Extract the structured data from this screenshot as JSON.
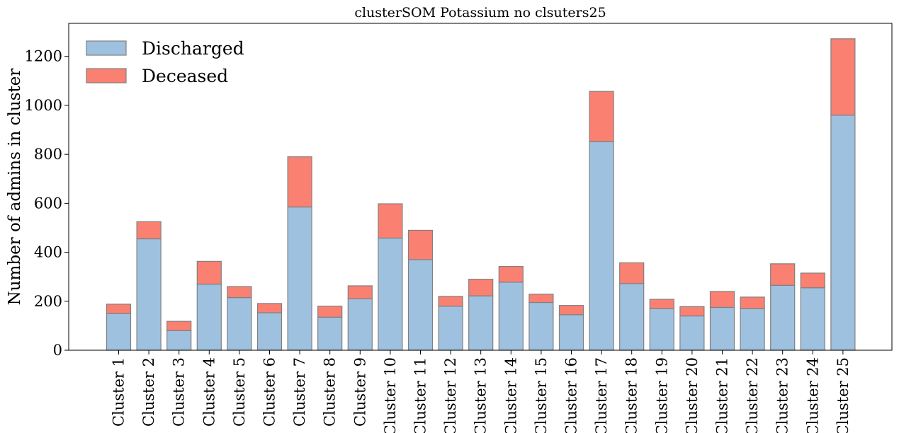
{
  "chart_data": {
    "type": "bar",
    "stacked": true,
    "title": "clusterSOM Potassium no clsuters25",
    "xlabel": "",
    "ylabel": "Number of admins in cluster",
    "ylim": [
      0,
      1335
    ],
    "yticks": [
      0,
      200,
      400,
      600,
      800,
      1000,
      1200
    ],
    "grid": false,
    "legend_position": "upper-left",
    "categories": [
      "Cluster 1",
      "Cluster 2",
      "Cluster 3",
      "Cluster 4",
      "Cluster 5",
      "Cluster 6",
      "Cluster 7",
      "Cluster 8",
      "Cluster 9",
      "Cluster 10",
      "Cluster 11",
      "Cluster 12",
      "Cluster 13",
      "Cluster 14",
      "Cluster 15",
      "Cluster 16",
      "Cluster 17",
      "Cluster 18",
      "Cluster 19",
      "Cluster 20",
      "Cluster 21",
      "Cluster 22",
      "Cluster 23",
      "Cluster 24",
      "Cluster 25"
    ],
    "series": [
      {
        "name": "Discharged",
        "color": "#9fc1e0",
        "values": [
          150,
          455,
          80,
          270,
          215,
          153,
          585,
          135,
          210,
          458,
          370,
          180,
          222,
          278,
          195,
          145,
          852,
          272,
          170,
          140,
          175,
          170,
          265,
          255,
          960
        ]
      },
      {
        "name": "Deceased",
        "color": "#fa8072",
        "values": [
          38,
          70,
          38,
          93,
          45,
          38,
          205,
          45,
          53,
          140,
          120,
          40,
          68,
          64,
          34,
          38,
          205,
          85,
          38,
          38,
          65,
          47,
          88,
          60,
          312
        ]
      }
    ],
    "edge_color": "#808080"
  }
}
